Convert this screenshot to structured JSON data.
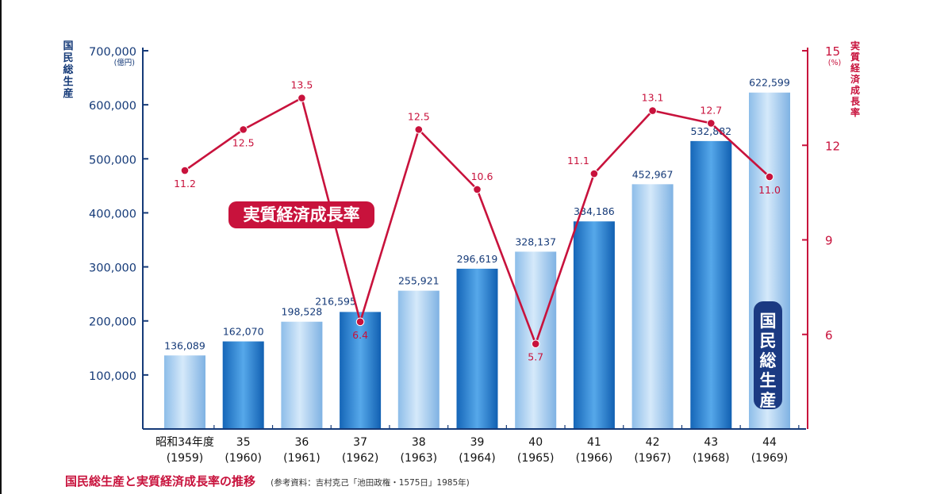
{
  "chart_data": {
    "type": "bar+line",
    "categories": [
      {
        "label": "昭和34年度",
        "year": "(1959)"
      },
      {
        "label": "35",
        "year": "(1960)"
      },
      {
        "label": "36",
        "year": "(1961)"
      },
      {
        "label": "37",
        "year": "(1962)"
      },
      {
        "label": "38",
        "year": "(1963)"
      },
      {
        "label": "39",
        "year": "(1964)"
      },
      {
        "label": "40",
        "year": "(1965)"
      },
      {
        "label": "41",
        "year": "(1966)"
      },
      {
        "label": "42",
        "year": "(1967)"
      },
      {
        "label": "43",
        "year": "(1968)"
      },
      {
        "label": "44",
        "year": "(1969)"
      }
    ],
    "gnp": {
      "name": "国民総生産",
      "values": [
        136089,
        162070,
        198528,
        216595,
        255921,
        296619,
        328137,
        384186,
        452967,
        532882,
        622599
      ],
      "labels": [
        "136,089",
        "162,070",
        "198,528",
        "216,595",
        "255,921",
        "296,619",
        "328,137",
        "384,186",
        "452,967",
        "532,882",
        "622,599"
      ]
    },
    "growth": {
      "name": "実質経済成長率",
      "values": [
        11.2,
        12.5,
        13.5,
        6.4,
        12.5,
        10.6,
        5.7,
        11.1,
        13.1,
        12.7,
        11.0
      ],
      "labels": [
        "11.2",
        "12.5",
        "13.5",
        "6.4",
        "12.5",
        "10.6",
        "5.7",
        "11.1",
        "13.1",
        "12.7",
        "11.0"
      ]
    },
    "left_axis": {
      "title": "国民総生産",
      "unit": "(億円)",
      "ylim": [
        0,
        700000
      ],
      "ticks": [
        100000,
        200000,
        300000,
        400000,
        500000,
        600000,
        700000
      ],
      "tick_labels": [
        "100,000",
        "200,000",
        "300,000",
        "400,000",
        "500,000",
        "600,000",
        "700,000"
      ]
    },
    "right_axis": {
      "title": "実質経済成長率",
      "unit": "(%)",
      "ylim": [
        3,
        15
      ],
      "ticks": [
        6,
        9,
        12,
        15
      ],
      "tick_labels": [
        "6",
        "9",
        "12",
        "15"
      ]
    },
    "grid": false
  },
  "caption": {
    "title": "国民総生産と実質経済成長率の推移",
    "source": "(参考資料：吉村克己「池田政権・1575日」1985年)"
  },
  "colors": {
    "axis_blue": "#153a78",
    "line_red": "#c8123c",
    "bar_light": "#a9cdef",
    "bar_dark": "#1f7fd0",
    "badge_navy": "#1b3a82"
  }
}
